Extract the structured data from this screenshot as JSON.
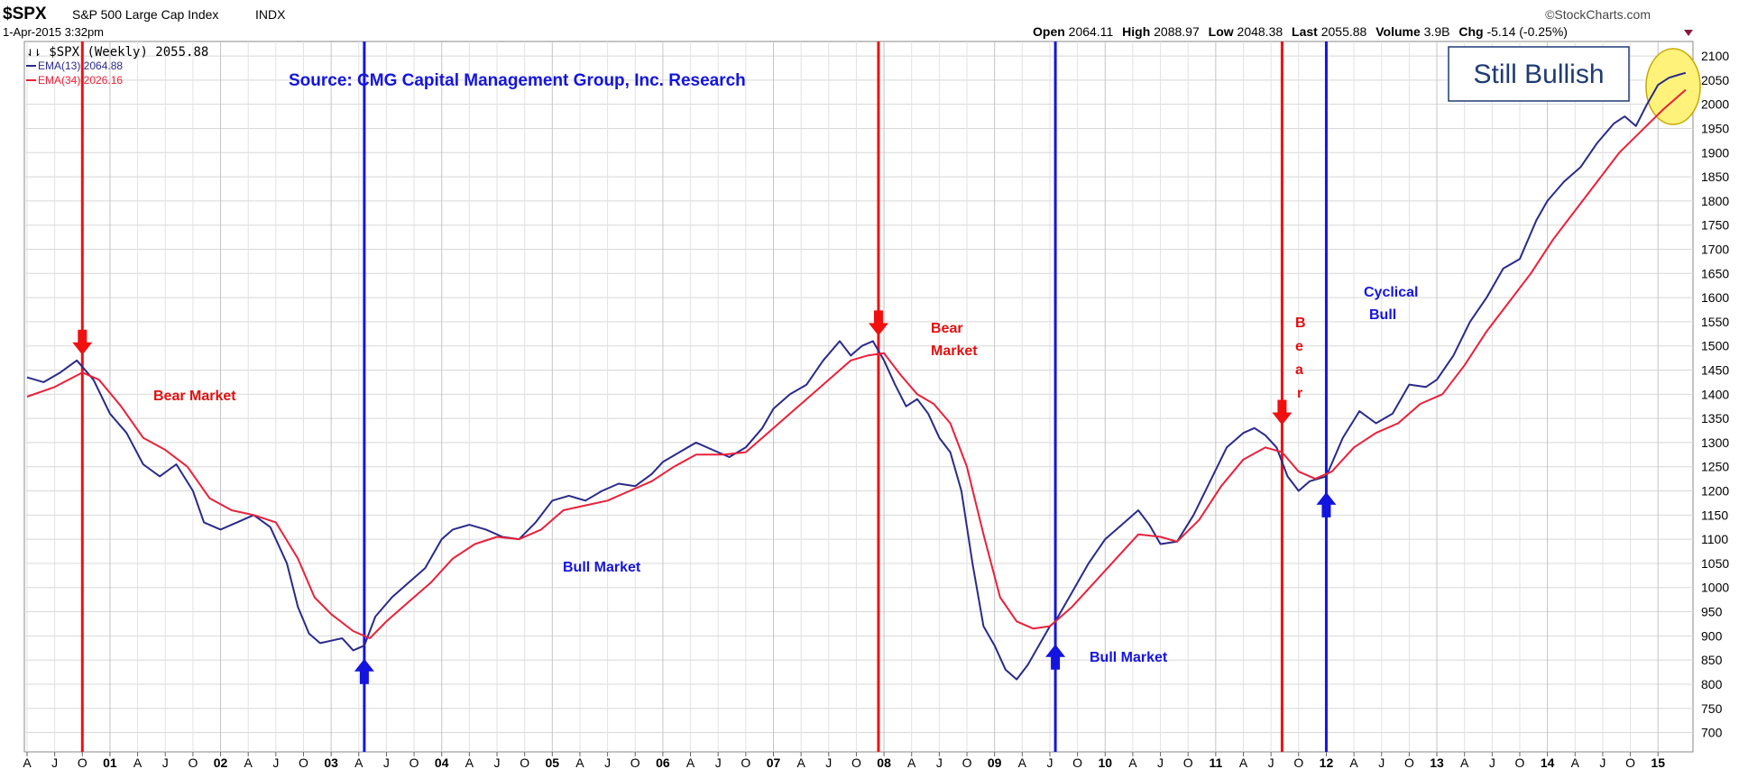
{
  "header": {
    "symbol": "$SPX",
    "index_name": "S&P 500 Large Cap Index",
    "exchange": "INDX",
    "brand": "©StockCharts.com",
    "date_time": "1-Apr-2015 3:32pm",
    "quote": {
      "open_label": "Open",
      "open": "2064.11",
      "high_label": "High",
      "high": "2088.97",
      "low_label": "Low",
      "low": "2048.38",
      "last_label": "Last",
      "last": "2055.88",
      "volume_label": "Volume",
      "volume": "3.9B",
      "chg_label": "Chg",
      "chg": "-5.14 (-0.25%)"
    }
  },
  "legend": {
    "price": "$SPX (Weekly) 2055.88",
    "ema13": "EMA(13) 2064.88",
    "ema34": "EMA(34) 2026.16"
  },
  "colors": {
    "price_line": "#2a2a8a",
    "ema_line": "#e8213a",
    "bear_line": "#f01010",
    "bull_line": "#1414e0",
    "grid": "#d8d8d8",
    "highlight": "#fff27a"
  },
  "annotations": {
    "source": "Source: CMG Capital Management Group, Inc. Research",
    "still_bullish": "Still Bullish",
    "bear_market_1": "Bear Market",
    "bull_market_1": "Bull Market",
    "bear_market_2_line1": "Bear",
    "bear_market_2_line2": "Market",
    "bull_market_2": "Bull Market",
    "bear_vertical": [
      "B",
      "e",
      "a",
      "r"
    ],
    "cyclical_line1": "Cyclical",
    "cyclical_line2": "Bull"
  },
  "chart_data": {
    "type": "line",
    "title": "$SPX S&P 500 Large Cap Index INDX",
    "ylim": [
      660,
      2130
    ],
    "y_ticks": [
      700,
      750,
      800,
      850,
      900,
      950,
      1000,
      1050,
      1100,
      1150,
      1200,
      1250,
      1300,
      1350,
      1400,
      1450,
      1500,
      1550,
      1600,
      1650,
      1700,
      1750,
      1800,
      1850,
      1900,
      1950,
      2000,
      2050,
      2100
    ],
    "xlim": [
      2000.25,
      2015.3
    ],
    "x_ticks": [
      {
        "t": 2000.25,
        "label": "A"
      },
      {
        "t": 2000.5,
        "label": "J"
      },
      {
        "t": 2000.75,
        "label": "O"
      },
      {
        "t": 2001,
        "label": "01"
      },
      {
        "t": 2001.25,
        "label": "A"
      },
      {
        "t": 2001.5,
        "label": "J"
      },
      {
        "t": 2001.75,
        "label": "O"
      },
      {
        "t": 2002,
        "label": "02"
      },
      {
        "t": 2002.25,
        "label": "A"
      },
      {
        "t": 2002.5,
        "label": "J"
      },
      {
        "t": 2002.75,
        "label": "O"
      },
      {
        "t": 2003,
        "label": "03"
      },
      {
        "t": 2003.25,
        "label": "A"
      },
      {
        "t": 2003.5,
        "label": "J"
      },
      {
        "t": 2003.75,
        "label": "O"
      },
      {
        "t": 2004,
        "label": "04"
      },
      {
        "t": 2004.25,
        "label": "A"
      },
      {
        "t": 2004.5,
        "label": "J"
      },
      {
        "t": 2004.75,
        "label": "O"
      },
      {
        "t": 2005,
        "label": "05"
      },
      {
        "t": 2005.25,
        "label": "A"
      },
      {
        "t": 2005.5,
        "label": "J"
      },
      {
        "t": 2005.75,
        "label": "O"
      },
      {
        "t": 2006,
        "label": "06"
      },
      {
        "t": 2006.25,
        "label": "A"
      },
      {
        "t": 2006.5,
        "label": "J"
      },
      {
        "t": 2006.75,
        "label": "O"
      },
      {
        "t": 2007,
        "label": "07"
      },
      {
        "t": 2007.25,
        "label": "A"
      },
      {
        "t": 2007.5,
        "label": "J"
      },
      {
        "t": 2007.75,
        "label": "O"
      },
      {
        "t": 2008,
        "label": "08"
      },
      {
        "t": 2008.25,
        "label": "A"
      },
      {
        "t": 2008.5,
        "label": "J"
      },
      {
        "t": 2008.75,
        "label": "O"
      },
      {
        "t": 2009,
        "label": "09"
      },
      {
        "t": 2009.25,
        "label": "A"
      },
      {
        "t": 2009.5,
        "label": "J"
      },
      {
        "t": 2009.75,
        "label": "O"
      },
      {
        "t": 2010,
        "label": "10"
      },
      {
        "t": 2010.25,
        "label": "A"
      },
      {
        "t": 2010.5,
        "label": "J"
      },
      {
        "t": 2010.75,
        "label": "O"
      },
      {
        "t": 2011,
        "label": "11"
      },
      {
        "t": 2011.25,
        "label": "A"
      },
      {
        "t": 2011.5,
        "label": "J"
      },
      {
        "t": 2011.75,
        "label": "O"
      },
      {
        "t": 2012,
        "label": "12"
      },
      {
        "t": 2012.25,
        "label": "A"
      },
      {
        "t": 2012.5,
        "label": "J"
      },
      {
        "t": 2012.75,
        "label": "O"
      },
      {
        "t": 2013,
        "label": "13"
      },
      {
        "t": 2013.25,
        "label": "A"
      },
      {
        "t": 2013.5,
        "label": "J"
      },
      {
        "t": 2013.75,
        "label": "O"
      },
      {
        "t": 2014,
        "label": "14"
      },
      {
        "t": 2014.25,
        "label": "A"
      },
      {
        "t": 2014.5,
        "label": "J"
      },
      {
        "t": 2014.75,
        "label": "O"
      },
      {
        "t": 2015,
        "label": "15"
      }
    ],
    "series": [
      {
        "name": "EMA(13)",
        "points": [
          [
            2000.25,
            1435
          ],
          [
            2000.4,
            1425
          ],
          [
            2000.55,
            1445
          ],
          [
            2000.7,
            1470
          ],
          [
            2000.85,
            1430
          ],
          [
            2001.0,
            1360
          ],
          [
            2001.15,
            1320
          ],
          [
            2001.3,
            1255
          ],
          [
            2001.45,
            1230
          ],
          [
            2001.6,
            1255
          ],
          [
            2001.75,
            1200
          ],
          [
            2001.85,
            1135
          ],
          [
            2002.0,
            1120
          ],
          [
            2002.15,
            1135
          ],
          [
            2002.3,
            1150
          ],
          [
            2002.45,
            1125
          ],
          [
            2002.6,
            1050
          ],
          [
            2002.7,
            960
          ],
          [
            2002.8,
            905
          ],
          [
            2002.9,
            885
          ],
          [
            2003.0,
            890
          ],
          [
            2003.1,
            895
          ],
          [
            2003.2,
            870
          ],
          [
            2003.3,
            880
          ],
          [
            2003.4,
            940
          ],
          [
            2003.55,
            980
          ],
          [
            2003.7,
            1010
          ],
          [
            2003.85,
            1040
          ],
          [
            2004.0,
            1100
          ],
          [
            2004.1,
            1120
          ],
          [
            2004.25,
            1130
          ],
          [
            2004.4,
            1120
          ],
          [
            2004.55,
            1105
          ],
          [
            2004.7,
            1100
          ],
          [
            2004.85,
            1135
          ],
          [
            2005.0,
            1180
          ],
          [
            2005.15,
            1190
          ],
          [
            2005.3,
            1180
          ],
          [
            2005.45,
            1200
          ],
          [
            2005.6,
            1215
          ],
          [
            2005.75,
            1210
          ],
          [
            2005.9,
            1235
          ],
          [
            2006.0,
            1260
          ],
          [
            2006.15,
            1280
          ],
          [
            2006.3,
            1300
          ],
          [
            2006.45,
            1285
          ],
          [
            2006.6,
            1270
          ],
          [
            2006.75,
            1290
          ],
          [
            2006.9,
            1330
          ],
          [
            2007.0,
            1370
          ],
          [
            2007.15,
            1400
          ],
          [
            2007.3,
            1420
          ],
          [
            2007.45,
            1470
          ],
          [
            2007.6,
            1510
          ],
          [
            2007.7,
            1480
          ],
          [
            2007.8,
            1500
          ],
          [
            2007.9,
            1510
          ],
          [
            2008.0,
            1470
          ],
          [
            2008.1,
            1420
          ],
          [
            2008.2,
            1375
          ],
          [
            2008.3,
            1390
          ],
          [
            2008.4,
            1360
          ],
          [
            2008.5,
            1310
          ],
          [
            2008.6,
            1280
          ],
          [
            2008.7,
            1200
          ],
          [
            2008.8,
            1050
          ],
          [
            2008.9,
            920
          ],
          [
            2009.0,
            880
          ],
          [
            2009.1,
            830
          ],
          [
            2009.2,
            810
          ],
          [
            2009.3,
            840
          ],
          [
            2009.4,
            880
          ],
          [
            2009.5,
            920
          ],
          [
            2009.55,
            930
          ],
          [
            2009.7,
            990
          ],
          [
            2009.85,
            1050
          ],
          [
            2010.0,
            1100
          ],
          [
            2010.15,
            1130
          ],
          [
            2010.3,
            1160
          ],
          [
            2010.4,
            1130
          ],
          [
            2010.5,
            1090
          ],
          [
            2010.65,
            1095
          ],
          [
            2010.8,
            1150
          ],
          [
            2010.95,
            1220
          ],
          [
            2011.1,
            1290
          ],
          [
            2011.25,
            1320
          ],
          [
            2011.35,
            1330
          ],
          [
            2011.45,
            1315
          ],
          [
            2011.55,
            1290
          ],
          [
            2011.65,
            1230
          ],
          [
            2011.75,
            1200
          ],
          [
            2011.85,
            1220
          ],
          [
            2012.0,
            1230
          ],
          [
            2012.15,
            1310
          ],
          [
            2012.3,
            1365
          ],
          [
            2012.45,
            1340
          ],
          [
            2012.6,
            1360
          ],
          [
            2012.75,
            1420
          ],
          [
            2012.9,
            1415
          ],
          [
            2013.0,
            1430
          ],
          [
            2013.15,
            1480
          ],
          [
            2013.3,
            1550
          ],
          [
            2013.45,
            1600
          ],
          [
            2013.6,
            1660
          ],
          [
            2013.75,
            1680
          ],
          [
            2013.9,
            1760
          ],
          [
            2014.0,
            1800
          ],
          [
            2014.15,
            1840
          ],
          [
            2014.3,
            1870
          ],
          [
            2014.45,
            1920
          ],
          [
            2014.6,
            1960
          ],
          [
            2014.7,
            1975
          ],
          [
            2014.8,
            1955
          ],
          [
            2014.9,
            2000
          ],
          [
            2015.0,
            2040
          ],
          [
            2015.1,
            2055
          ],
          [
            2015.2,
            2062
          ],
          [
            2015.25,
            2065
          ]
        ]
      },
      {
        "name": "EMA(34)",
        "points": [
          [
            2000.25,
            1395
          ],
          [
            2000.5,
            1415
          ],
          [
            2000.75,
            1445
          ],
          [
            2000.9,
            1430
          ],
          [
            2001.1,
            1375
          ],
          [
            2001.3,
            1310
          ],
          [
            2001.5,
            1285
          ],
          [
            2001.7,
            1250
          ],
          [
            2001.9,
            1185
          ],
          [
            2002.1,
            1160
          ],
          [
            2002.3,
            1150
          ],
          [
            2002.5,
            1135
          ],
          [
            2002.7,
            1060
          ],
          [
            2002.85,
            980
          ],
          [
            2003.0,
            945
          ],
          [
            2003.2,
            910
          ],
          [
            2003.35,
            895
          ],
          [
            2003.5,
            930
          ],
          [
            2003.7,
            970
          ],
          [
            2003.9,
            1010
          ],
          [
            2004.1,
            1060
          ],
          [
            2004.3,
            1090
          ],
          [
            2004.5,
            1105
          ],
          [
            2004.7,
            1100
          ],
          [
            2004.9,
            1120
          ],
          [
            2005.1,
            1160
          ],
          [
            2005.3,
            1170
          ],
          [
            2005.5,
            1180
          ],
          [
            2005.7,
            1200
          ],
          [
            2005.9,
            1220
          ],
          [
            2006.1,
            1250
          ],
          [
            2006.3,
            1275
          ],
          [
            2006.55,
            1275
          ],
          [
            2006.75,
            1280
          ],
          [
            2006.95,
            1320
          ],
          [
            2007.2,
            1370
          ],
          [
            2007.45,
            1420
          ],
          [
            2007.7,
            1470
          ],
          [
            2007.85,
            1480
          ],
          [
            2008.0,
            1485
          ],
          [
            2008.15,
            1440
          ],
          [
            2008.3,
            1400
          ],
          [
            2008.45,
            1380
          ],
          [
            2008.6,
            1340
          ],
          [
            2008.75,
            1250
          ],
          [
            2008.9,
            1110
          ],
          [
            2009.05,
            980
          ],
          [
            2009.2,
            930
          ],
          [
            2009.35,
            915
          ],
          [
            2009.5,
            920
          ],
          [
            2009.7,
            960
          ],
          [
            2009.9,
            1010
          ],
          [
            2010.1,
            1060
          ],
          [
            2010.3,
            1110
          ],
          [
            2010.5,
            1105
          ],
          [
            2010.65,
            1095
          ],
          [
            2010.85,
            1140
          ],
          [
            2011.05,
            1210
          ],
          [
            2011.25,
            1265
          ],
          [
            2011.45,
            1290
          ],
          [
            2011.6,
            1280
          ],
          [
            2011.75,
            1240
          ],
          [
            2011.9,
            1225
          ],
          [
            2012.05,
            1240
          ],
          [
            2012.25,
            1290
          ],
          [
            2012.45,
            1320
          ],
          [
            2012.65,
            1340
          ],
          [
            2012.85,
            1380
          ],
          [
            2013.05,
            1400
          ],
          [
            2013.25,
            1460
          ],
          [
            2013.45,
            1530
          ],
          [
            2013.65,
            1590
          ],
          [
            2013.85,
            1650
          ],
          [
            2014.05,
            1720
          ],
          [
            2014.25,
            1780
          ],
          [
            2014.45,
            1840
          ],
          [
            2014.65,
            1900
          ],
          [
            2014.85,
            1945
          ],
          [
            2015.05,
            1990
          ],
          [
            2015.25,
            2030
          ]
        ]
      }
    ],
    "vertical_markers": [
      {
        "t": 2000.75,
        "kind": "bear",
        "y": 1470
      },
      {
        "t": 2003.3,
        "kind": "bull",
        "y": 860
      },
      {
        "t": 2007.95,
        "kind": "bear",
        "y": 1510
      },
      {
        "t": 2009.55,
        "kind": "bull",
        "y": 890
      },
      {
        "t": 2011.6,
        "kind": "bear",
        "y": 1325
      },
      {
        "t": 2012.0,
        "kind": "bull",
        "y": 1205
      }
    ]
  }
}
